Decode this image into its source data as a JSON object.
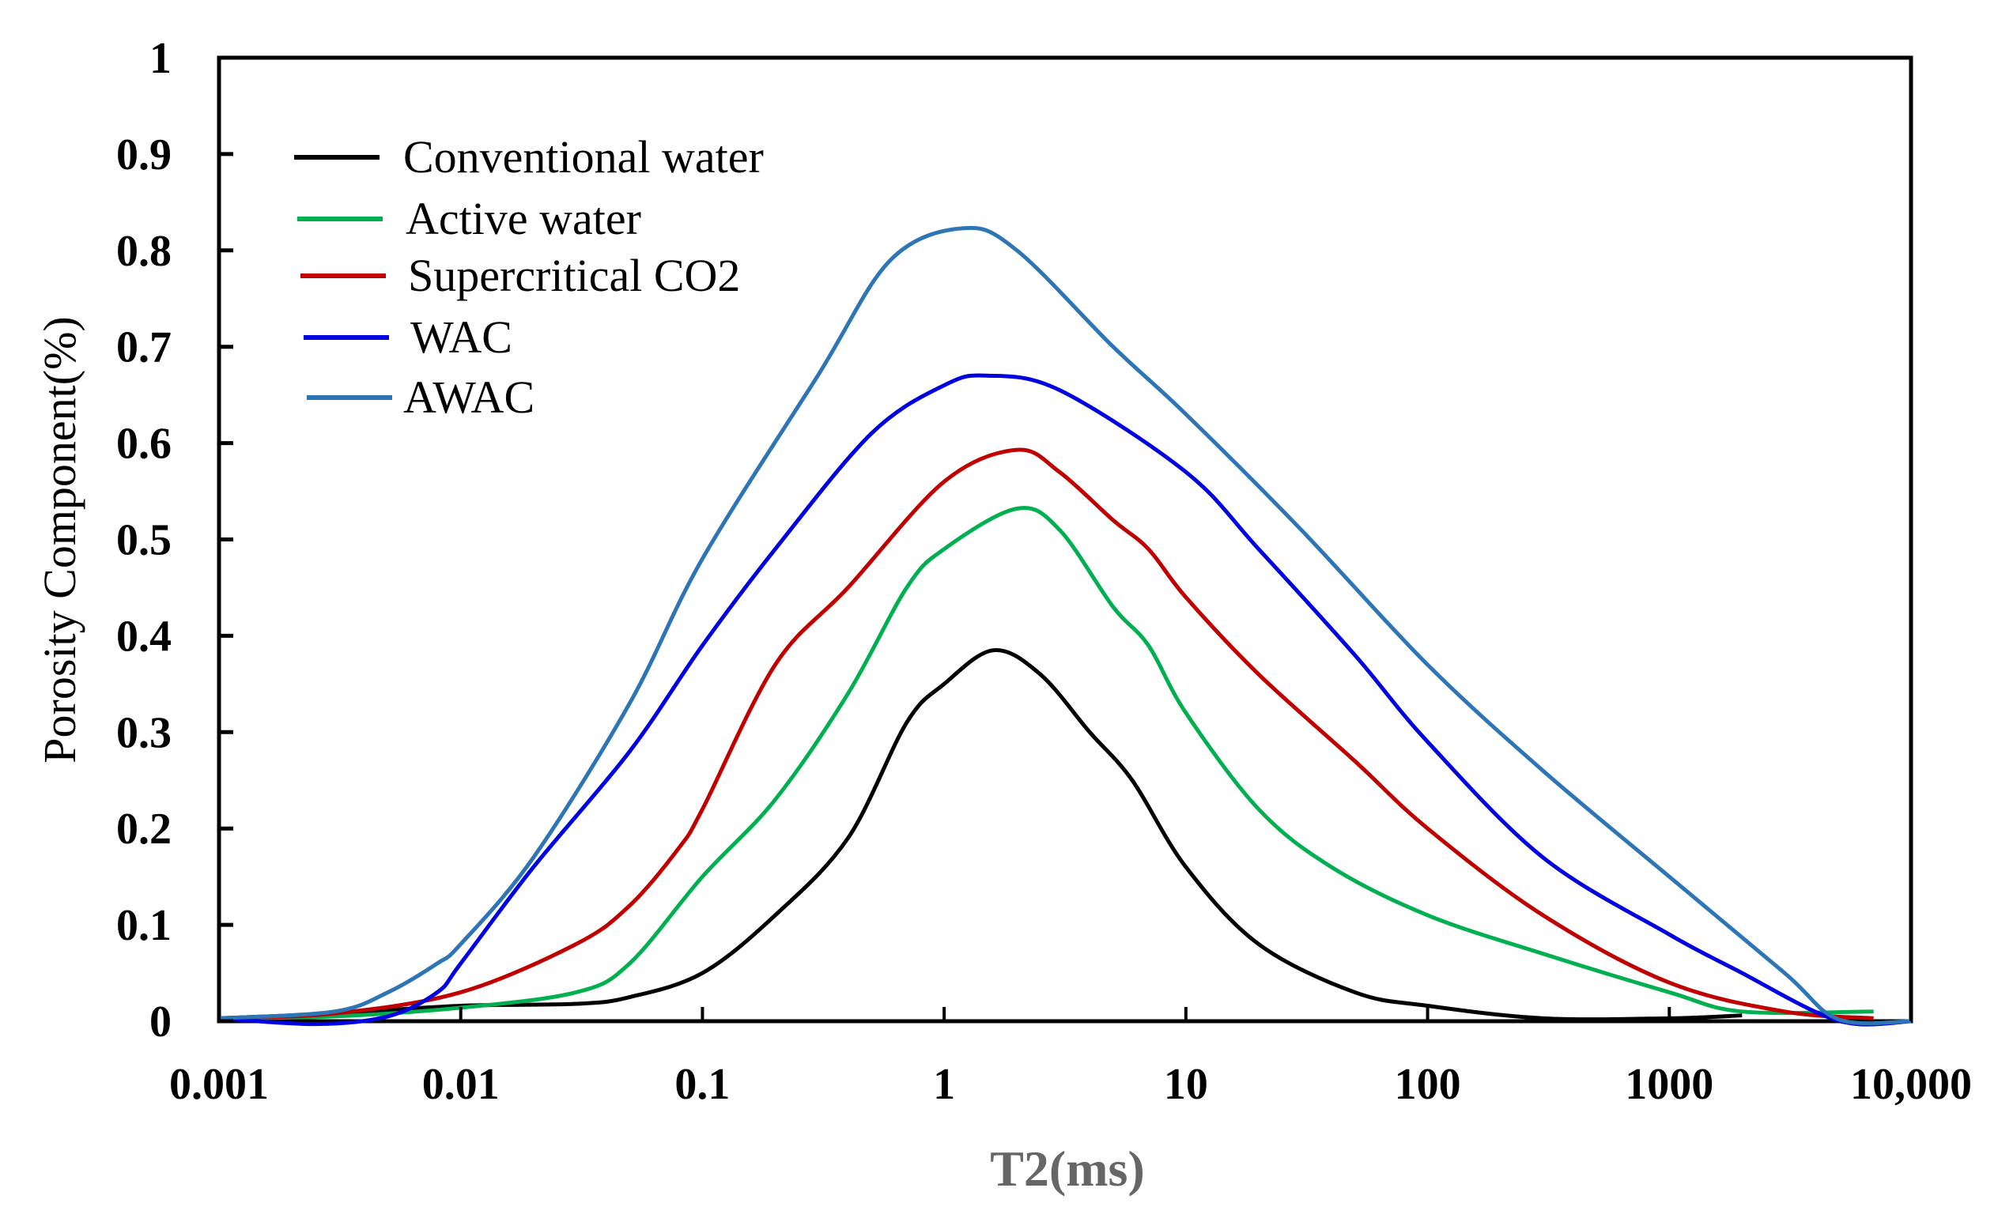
{
  "chart_data": {
    "type": "line",
    "title": "",
    "xlabel": "T2(ms)",
    "ylabel": "Porosity Component(%)",
    "xscale": "log",
    "xlim": [
      0.001,
      10000
    ],
    "ylim": [
      0,
      1
    ],
    "x_ticks": [
      0.001,
      0.01,
      0.1,
      1,
      10,
      100,
      1000,
      10000
    ],
    "x_tick_labels": [
      "0.001",
      "0.01",
      "0.1",
      "1",
      "10",
      "100",
      "1000",
      "10,000"
    ],
    "y_ticks": [
      0,
      0.1,
      0.2,
      0.3,
      0.4,
      0.5,
      0.6,
      0.7,
      0.8,
      0.9,
      1
    ],
    "y_tick_labels": [
      "0",
      "0.1",
      "0.2",
      "0.3",
      "0.4",
      "0.5",
      "0.6",
      "0.7",
      "0.8",
      "0.9",
      "1"
    ],
    "grid": false,
    "legend_position": "top-left",
    "series": [
      {
        "name": "Conventional water",
        "color": "#000000",
        "x": [
          0.001,
          0.003,
          0.01,
          0.03,
          0.05,
          0.1,
          0.2,
          0.4,
          0.7,
          1,
          1.6,
          2.5,
          4,
          6,
          10,
          20,
          50,
          100,
          300,
          1000,
          2000
        ],
        "y": [
          0.003,
          0.008,
          0.016,
          0.018,
          0.025,
          0.05,
          0.11,
          0.19,
          0.31,
          0.35,
          0.385,
          0.36,
          0.3,
          0.25,
          0.16,
          0.08,
          0.03,
          0.016,
          0.003,
          0.003,
          0.006
        ]
      },
      {
        "name": "Active water",
        "color": "#00b050",
        "x": [
          0.001,
          0.003,
          0.01,
          0.03,
          0.05,
          0.1,
          0.2,
          0.4,
          0.7,
          1,
          2,
          3,
          5,
          7,
          10,
          20,
          40,
          100,
          300,
          1000,
          2000,
          7000
        ],
        "y": [
          0.003,
          0.005,
          0.014,
          0.03,
          0.06,
          0.15,
          0.23,
          0.34,
          0.45,
          0.49,
          0.532,
          0.51,
          0.43,
          0.39,
          0.32,
          0.22,
          0.16,
          0.11,
          0.07,
          0.03,
          0.01,
          0.01
        ]
      },
      {
        "name": "Supercritical CO2",
        "color": "#c00000",
        "x": [
          0.001,
          0.003,
          0.01,
          0.03,
          0.05,
          0.08,
          0.1,
          0.2,
          0.4,
          1,
          2,
          3,
          5,
          7,
          10,
          20,
          50,
          100,
          300,
          1000,
          3000,
          7000
        ],
        "y": [
          0.003,
          0.008,
          0.03,
          0.08,
          0.12,
          0.18,
          0.22,
          0.37,
          0.45,
          0.56,
          0.593,
          0.57,
          0.52,
          0.49,
          0.44,
          0.36,
          0.27,
          0.2,
          0.11,
          0.04,
          0.01,
          0.003
        ]
      },
      {
        "name": "WAC",
        "color": "#0000e0",
        "x": [
          0.001,
          0.0025,
          0.005,
          0.008,
          0.01,
          0.02,
          0.05,
          0.1,
          0.2,
          0.5,
          1,
          1.5,
          3,
          10,
          20,
          50,
          100,
          300,
          1000,
          2000,
          4000,
          6000,
          10000
        ],
        "y": [
          0.003,
          -0.003,
          0.005,
          0.03,
          0.06,
          0.16,
          0.28,
          0.39,
          0.49,
          0.61,
          0.66,
          0.67,
          0.655,
          0.57,
          0.49,
          0.38,
          0.29,
          0.17,
          0.09,
          0.05,
          0.01,
          -0.003,
          0
        ]
      },
      {
        "name": "AWAC",
        "color": "#2e75b6",
        "x": [
          0.001,
          0.003,
          0.005,
          0.008,
          0.01,
          0.02,
          0.05,
          0.1,
          0.3,
          0.6,
          1.2,
          2,
          5,
          10,
          30,
          100,
          300,
          1000,
          3000,
          5000,
          10000
        ],
        "y": [
          0.003,
          0.01,
          0.03,
          0.06,
          0.08,
          0.17,
          0.33,
          0.48,
          0.67,
          0.79,
          0.823,
          0.8,
          0.7,
          0.63,
          0.51,
          0.37,
          0.26,
          0.15,
          0.05,
          0.002,
          0
        ]
      }
    ]
  }
}
